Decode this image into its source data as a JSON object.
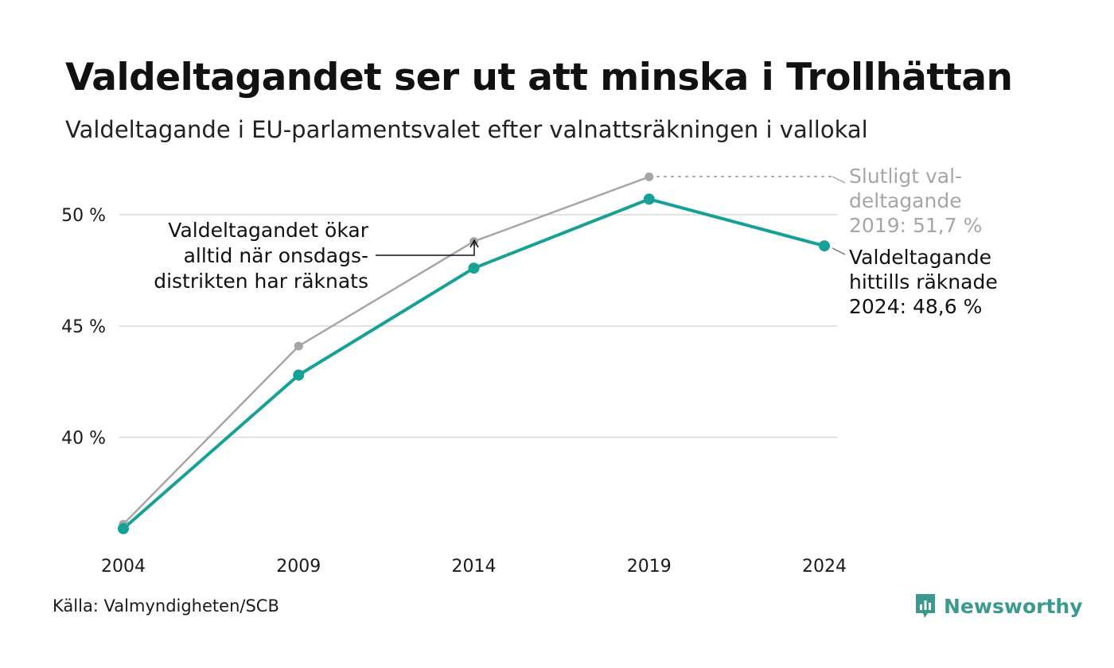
{
  "header": {
    "title": "Valdeltagandet ser ut att minska i Trollhättan",
    "subtitle": "Valdeltagande i EU-parlamentsvalet efter valnattsräkningen i vallokal"
  },
  "chart_data": {
    "type": "line",
    "title": "Valdeltagandet ser ut att minska i Trollhättan",
    "subtitle": "Valdeltagande i EU-parlamentsvalet efter valnattsräkningen i vallokal",
    "categories": [
      "2004",
      "2009",
      "2014",
      "2019",
      "2024"
    ],
    "yticks": [
      40,
      45,
      50
    ],
    "ytick_labels": [
      "40 %",
      "45 %",
      "50 %"
    ],
    "ylim": [
      34.5,
      52.5
    ],
    "grid": true,
    "series": [
      {
        "values": [
          36.1,
          44.1,
          48.8,
          51.7,
          null
        ],
        "color": "#a6a6a6"
      },
      {
        "values": [
          35.9,
          42.8,
          47.6,
          50.7,
          48.6
        ],
        "color": "#16a196"
      }
    ],
    "annotations": {
      "final_line1": "Slutligt val-",
      "final_line2": "deltagande",
      "final_line3": "2019: 51,7 %",
      "current_line1": "Valdeltagande",
      "current_line2": "hittills räknade",
      "current_line3": "2024: 48,6 %",
      "note_line1": "Valdeltagandet ökar",
      "note_line2": "alltid när onsdags-",
      "note_line3": "distrikten har räknats"
    }
  },
  "footer": {
    "source": "Källa: Valmyndigheten/SCB",
    "logo": "Newsworthy",
    "logo_icon": "bar-chart-icon",
    "logo_color": "#3a9a8e"
  }
}
